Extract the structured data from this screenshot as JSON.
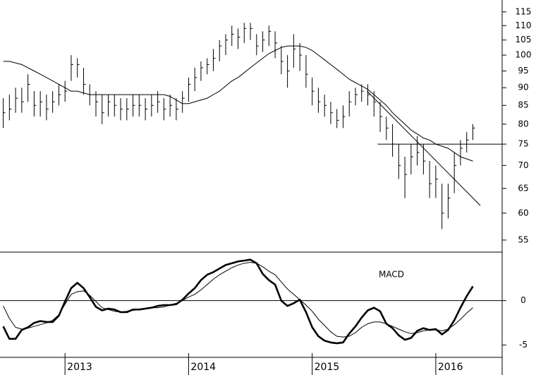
{
  "chart_data": [
    {
      "type": "ohlc",
      "log_scale": true,
      "color": "#000000",
      "x": [
        2012.5,
        2012.55,
        2012.6,
        2012.65,
        2012.7,
        2012.75,
        2012.8,
        2012.85,
        2012.9,
        2012.95,
        2013.0,
        2013.05,
        2013.1,
        2013.15,
        2013.2,
        2013.25,
        2013.3,
        2013.35,
        2013.4,
        2013.45,
        2013.5,
        2013.55,
        2013.6,
        2013.65,
        2013.7,
        2013.75,
        2013.8,
        2013.85,
        2013.9,
        2013.95,
        2014.0,
        2014.05,
        2014.1,
        2014.15,
        2014.2,
        2014.25,
        2014.3,
        2014.35,
        2014.4,
        2014.45,
        2014.5,
        2014.55,
        2014.6,
        2014.65,
        2014.7,
        2014.75,
        2014.8,
        2014.85,
        2014.9,
        2014.95,
        2015.0,
        2015.05,
        2015.1,
        2015.15,
        2015.2,
        2015.25,
        2015.3,
        2015.35,
        2015.4,
        2015.45,
        2015.5,
        2015.55,
        2015.6,
        2015.65,
        2015.7,
        2015.75,
        2015.8,
        2015.85,
        2015.9,
        2015.95,
        2016.0,
        2016.05,
        2016.1,
        2016.15,
        2016.2,
        2016.25,
        2016.3
      ],
      "high": [
        87,
        88,
        90,
        90,
        94,
        89,
        89,
        88,
        89,
        91,
        92,
        100,
        99,
        96,
        91,
        89,
        88,
        88,
        88,
        87,
        87,
        88,
        88,
        87,
        88,
        89,
        87,
        88,
        87,
        89,
        93,
        96,
        98,
        99,
        102,
        105,
        107,
        110,
        109,
        111,
        111,
        107,
        108,
        110,
        108,
        103,
        100,
        107,
        104,
        100,
        93,
        90,
        88,
        86,
        84,
        85,
        89,
        90,
        91,
        91,
        89,
        86,
        82,
        80,
        75,
        72,
        75,
        77,
        75,
        71,
        70,
        66,
        66,
        73,
        76,
        78,
        80
      ],
      "low": [
        79,
        81,
        83,
        83,
        86,
        82,
        82,
        81,
        83,
        85,
        86,
        92,
        93,
        88,
        85,
        82,
        80,
        82,
        82,
        81,
        81,
        82,
        82,
        81,
        82,
        83,
        81,
        82,
        81,
        83,
        86,
        89,
        92,
        94,
        95,
        98,
        100,
        103,
        102,
        104,
        105,
        100,
        101,
        103,
        99,
        94,
        90,
        96,
        95,
        90,
        85,
        83,
        82,
        80,
        79,
        79,
        82,
        85,
        86,
        85,
        82,
        78,
        76,
        72,
        67,
        63,
        68,
        70,
        68,
        63,
        63,
        57,
        59,
        64,
        70,
        73,
        76
      ],
      "close": [
        83,
        84,
        87,
        86,
        91,
        85,
        86,
        84,
        86,
        88,
        89,
        97,
        97,
        91,
        88,
        86,
        83,
        86,
        85,
        84,
        84,
        85,
        85,
        84,
        85,
        86,
        84,
        85,
        84,
        87,
        91,
        93,
        96,
        97,
        99,
        103,
        105,
        107,
        106,
        109,
        109,
        103,
        105,
        108,
        104,
        98,
        95,
        102,
        100,
        94,
        89,
        86,
        85,
        83,
        81,
        82,
        86,
        88,
        89,
        88,
        86,
        82,
        79,
        75,
        70,
        68,
        72,
        73,
        71,
        66,
        67,
        60,
        63,
        70,
        74,
        76,
        79
      ],
      "series": [
        {
          "color": "#000000",
          "values": [
            98,
            98,
            97.5,
            97,
            96,
            95,
            94,
            93,
            92,
            91,
            90,
            89,
            89,
            88.5,
            88,
            88,
            88,
            88,
            88,
            88,
            88,
            88,
            88,
            88,
            88,
            88,
            88,
            87.5,
            86.5,
            85.5,
            85.5,
            86,
            86.5,
            87,
            88,
            89,
            90.5,
            92,
            93,
            94.5,
            96,
            97.5,
            99,
            100.5,
            101.5,
            102.5,
            103,
            103,
            103,
            102.5,
            101.5,
            100,
            98.5,
            97,
            95.5,
            94,
            92.5,
            91.5,
            90.5,
            89.5,
            88,
            86.5,
            85,
            83,
            81.5,
            80,
            78.5,
            77.5,
            76.5,
            76,
            75,
            74.5,
            74,
            73,
            72,
            71.5,
            71
          ]
        }
      ],
      "trendlines": [
        {
          "x": [
            2015.445,
            2016.36
          ],
          "y": [
            89,
            61.5
          ]
        },
        {
          "x": [
            2015.53,
            2016.537
          ],
          "y": [
            75,
            75
          ]
        }
      ],
      "xlim": [
        2012.474,
        2016.537
      ],
      "ylim": [
        52.9,
        119.5
      ],
      "yticks": [
        55,
        60,
        65,
        70,
        75,
        80,
        85,
        90,
        95,
        100,
        105,
        110,
        115
      ]
    },
    {
      "type": "line",
      "annotation": "MACD",
      "zero_line": true,
      "x": [
        2012.5,
        2012.55,
        2012.6,
        2012.65,
        2012.7,
        2012.75,
        2012.8,
        2012.85,
        2012.9,
        2012.95,
        2013.0,
        2013.05,
        2013.1,
        2013.15,
        2013.2,
        2013.25,
        2013.3,
        2013.35,
        2013.4,
        2013.45,
        2013.5,
        2013.55,
        2013.6,
        2013.65,
        2013.7,
        2013.75,
        2013.8,
        2013.85,
        2013.9,
        2013.95,
        2014.0,
        2014.05,
        2014.1,
        2014.15,
        2014.2,
        2014.25,
        2014.3,
        2014.35,
        2014.4,
        2014.45,
        2014.5,
        2014.55,
        2014.6,
        2014.65,
        2014.7,
        2014.75,
        2014.8,
        2014.85,
        2014.9,
        2014.95,
        2015.0,
        2015.05,
        2015.1,
        2015.15,
        2015.2,
        2015.25,
        2015.3,
        2015.35,
        2015.4,
        2015.45,
        2015.5,
        2015.55,
        2015.6,
        2015.65,
        2015.7,
        2015.75,
        2015.8,
        2015.85,
        2015.9,
        2015.95,
        2016.0,
        2016.05,
        2016.1,
        2016.15,
        2016.2,
        2016.25,
        2016.3
      ],
      "series": [
        {
          "color": "#000000",
          "width": 2.6,
          "values": [
            -2.9,
            -4.3,
            -4.3,
            -3.3,
            -3.0,
            -2.5,
            -2.3,
            -2.4,
            -2.4,
            -1.7,
            -0.1,
            1.4,
            2.0,
            1.4,
            0.4,
            -0.7,
            -1.1,
            -0.9,
            -1.0,
            -1.3,
            -1.3,
            -1.0,
            -1.0,
            -0.9,
            -0.8,
            -0.6,
            -0.5,
            -0.5,
            -0.4,
            0.1,
            0.8,
            1.4,
            2.3,
            2.9,
            3.2,
            3.6,
            4.0,
            4.2,
            4.4,
            4.5,
            4.6,
            4.2,
            3.0,
            2.3,
            1.8,
            0.0,
            -0.6,
            -0.3,
            0.1,
            -1.3,
            -3.0,
            -4.0,
            -4.5,
            -4.7,
            -4.8,
            -4.7,
            -3.7,
            -2.9,
            -1.9,
            -1.1,
            -0.8,
            -1.2,
            -2.6,
            -3.1,
            -3.9,
            -4.4,
            -4.2,
            -3.4,
            -3.1,
            -3.3,
            -3.2,
            -3.8,
            -3.3,
            -2.2,
            -0.8,
            0.5,
            1.6
          ]
        },
        {
          "color": "#000000",
          "width": 1,
          "values": [
            -0.6,
            -2.0,
            -3.0,
            -3.2,
            -3.1,
            -2.9,
            -2.7,
            -2.5,
            -2.2,
            -1.6,
            -0.4,
            0.7,
            1.0,
            1.1,
            0.6,
            -0.1,
            -0.8,
            -1.0,
            -1.2,
            -1.3,
            -1.2,
            -1.1,
            -1.0,
            -0.9,
            -0.8,
            -0.8,
            -0.7,
            -0.5,
            -0.3,
            0.0,
            0.4,
            0.7,
            1.2,
            1.8,
            2.4,
            2.9,
            3.3,
            3.7,
            4.0,
            4.2,
            4.3,
            4.2,
            3.8,
            3.3,
            2.9,
            2.1,
            1.3,
            0.7,
            0.1,
            -0.5,
            -1.2,
            -2.1,
            -2.8,
            -3.5,
            -4.0,
            -4.1,
            -4.0,
            -3.6,
            -3.0,
            -2.6,
            -2.4,
            -2.4,
            -2.6,
            -2.9,
            -3.2,
            -3.5,
            -3.7,
            -3.6,
            -3.4,
            -3.3,
            -3.3,
            -3.4,
            -3.2,
            -2.7,
            -2.1,
            -1.4,
            -0.8
          ]
        }
      ],
      "xlim": [
        2012.474,
        2016.537
      ],
      "ylim": [
        -5.9,
        5.45
      ],
      "yticks": [
        -5,
        0
      ],
      "xticks": [
        2013,
        2014,
        2015,
        2016
      ]
    }
  ]
}
